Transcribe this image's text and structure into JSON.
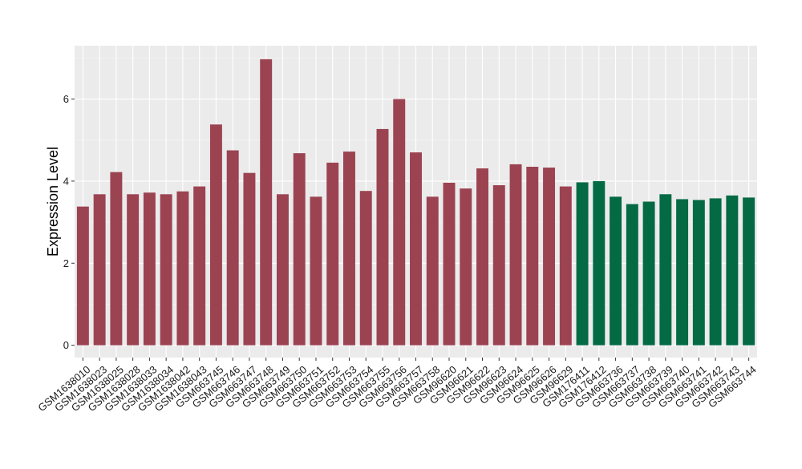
{
  "chart_data": {
    "type": "bar",
    "title": "",
    "xlabel": "",
    "ylabel": "Expression Level",
    "ylim": [
      -0.3,
      7.3
    ],
    "yticks": [
      0,
      2,
      4,
      6
    ],
    "grid": true,
    "legend": "none",
    "colors": {
      "group_a": "#9c4352",
      "group_b": "#046a44",
      "panel_bg": "#ebebeb",
      "grid_major": "#ffffff",
      "tick_mark": "#333333"
    },
    "categories": [
      "GSM1638010",
      "GSM1638023",
      "GSM1638025",
      "GSM1638028",
      "GSM1638033",
      "GSM1638034",
      "GSM1638042",
      "GSM1638043",
      "GSM663745",
      "GSM663746",
      "GSM663747",
      "GSM663748",
      "GSM663749",
      "GSM663750",
      "GSM663751",
      "GSM663752",
      "GSM663753",
      "GSM663754",
      "GSM663755",
      "GSM663756",
      "GSM663757",
      "GSM663758",
      "GSM96620",
      "GSM96621",
      "GSM96622",
      "GSM96623",
      "GSM96624",
      "GSM96625",
      "GSM96626",
      "GSM96629",
      "GSM176411",
      "GSM176412",
      "GSM663736",
      "GSM663737",
      "GSM663738",
      "GSM663739",
      "GSM663740",
      "GSM663741",
      "GSM663742",
      "GSM663743",
      "GSM663744"
    ],
    "values": [
      3.38,
      3.68,
      4.22,
      3.68,
      3.72,
      3.68,
      3.75,
      3.87,
      5.38,
      4.75,
      4.2,
      6.97,
      3.68,
      4.68,
      3.62,
      4.45,
      4.72,
      3.76,
      5.27,
      6.0,
      4.7,
      3.62,
      3.96,
      3.82,
      4.31,
      3.9,
      4.41,
      4.35,
      4.33,
      3.87,
      3.97,
      4.0,
      3.62,
      3.44,
      3.5,
      3.68,
      3.56,
      3.54,
      3.58,
      3.65,
      3.6
    ],
    "group": [
      "a",
      "a",
      "a",
      "a",
      "a",
      "a",
      "a",
      "a",
      "a",
      "a",
      "a",
      "a",
      "a",
      "a",
      "a",
      "a",
      "a",
      "a",
      "a",
      "a",
      "a",
      "a",
      "a",
      "a",
      "a",
      "a",
      "a",
      "a",
      "a",
      "a",
      "b",
      "b",
      "b",
      "b",
      "b",
      "b",
      "b",
      "b",
      "b",
      "b",
      "b"
    ]
  }
}
